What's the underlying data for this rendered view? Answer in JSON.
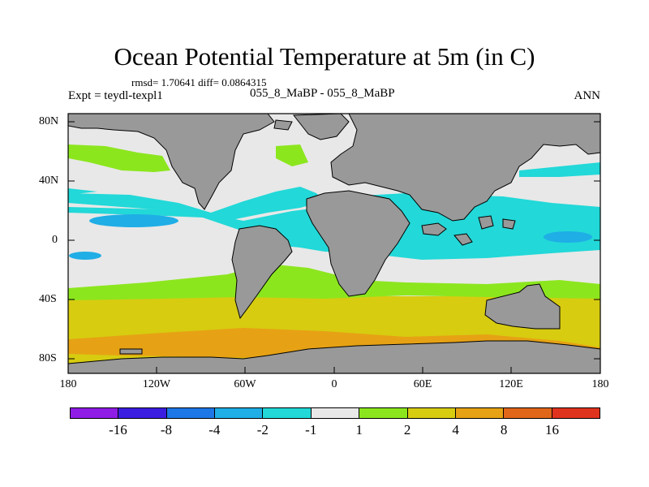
{
  "title": "Ocean Potential Temperature at 5m (in C)",
  "stats": "rmsd= 1.70641 diff= 0.0864315",
  "experiment": "Expt = teydl-texpl1",
  "runs": "055_8_MaBP - 055_8_MaBP",
  "season": "ANN",
  "y_ticks": [
    "80N",
    "40N",
    "0",
    "40S",
    "80S"
  ],
  "x_ticks": [
    "180",
    "120W",
    "60W",
    "0",
    "60E",
    "120E",
    "180"
  ],
  "colorbar": {
    "colors": [
      "#8f1de6",
      "#3b1ee0",
      "#1e77e6",
      "#1faee6",
      "#22d8d8",
      "#e8e8e8",
      "#8ce61e",
      "#d7cc10",
      "#e6a214",
      "#e0661a",
      "#e0331e"
    ],
    "labels": [
      "-16",
      "-8",
      "-4",
      "-2",
      "-1",
      "1",
      "2",
      "4",
      "8",
      "16"
    ]
  },
  "chart_data": {
    "type": "map",
    "title": "Ocean Potential Temperature at 5m (in C)",
    "projection": "cylindrical equidistant",
    "lon_range": [
      -180,
      180
    ],
    "lat_range": [
      -90,
      90
    ],
    "contour_levels": [
      -16,
      -8,
      -4,
      -2,
      -1,
      1,
      2,
      4,
      8,
      16
    ],
    "land_color": "#999999",
    "regions": [
      {
        "name": "southern-ocean-warm-band",
        "level": "4 to 8",
        "lat_range": [
          -80,
          -60
        ]
      },
      {
        "name": "southern-midlatitude-band",
        "level": "2 to 4",
        "lat_range": [
          -60,
          -40
        ]
      },
      {
        "name": "equatorial-cool-band",
        "level": "-2 to -1",
        "lat_range": [
          -10,
          15
        ]
      },
      {
        "name": "north-atlantic-warm",
        "level": "1 to 2",
        "lat_range": [
          50,
          65
        ]
      }
    ]
  }
}
